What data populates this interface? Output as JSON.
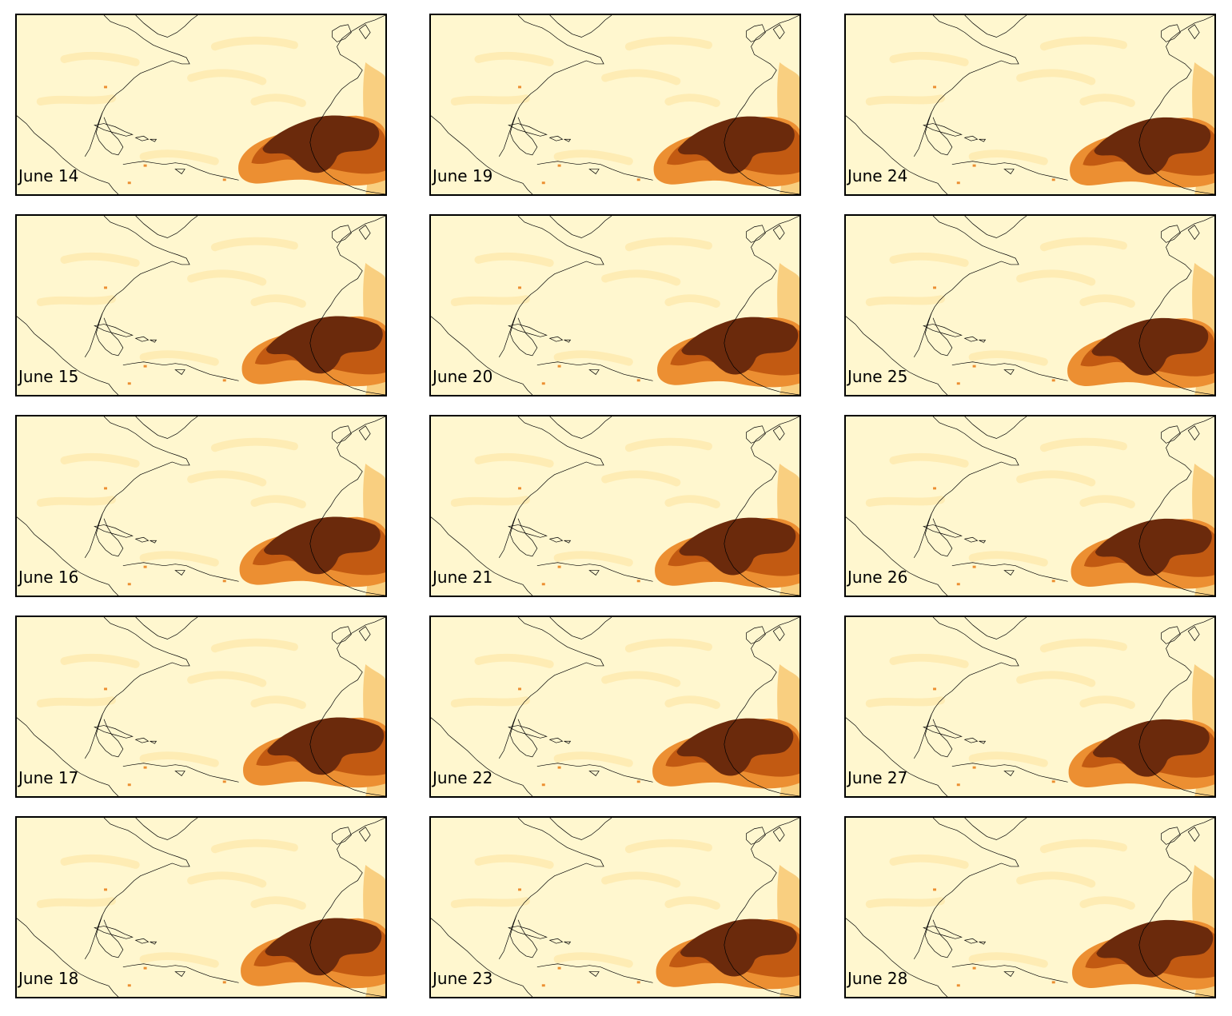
{
  "figure": {
    "panels": [
      {
        "date": "June 14"
      },
      {
        "date": "June 19"
      },
      {
        "date": "June 24"
      },
      {
        "date": "June 15"
      },
      {
        "date": "June 20"
      },
      {
        "date": "June 25"
      },
      {
        "date": "June 16"
      },
      {
        "date": "June 21"
      },
      {
        "date": "June 26"
      },
      {
        "date": "June 17"
      },
      {
        "date": "June 22"
      },
      {
        "date": "June 27"
      },
      {
        "date": "June 18"
      },
      {
        "date": "June 23"
      },
      {
        "date": "June 28"
      }
    ],
    "colormap": [
      "#fff7cf",
      "#fde7a8",
      "#f8c46c",
      "#ec8f32",
      "#c25a12",
      "#6b2a0c"
    ],
    "coastline_color": "#000000"
  }
}
